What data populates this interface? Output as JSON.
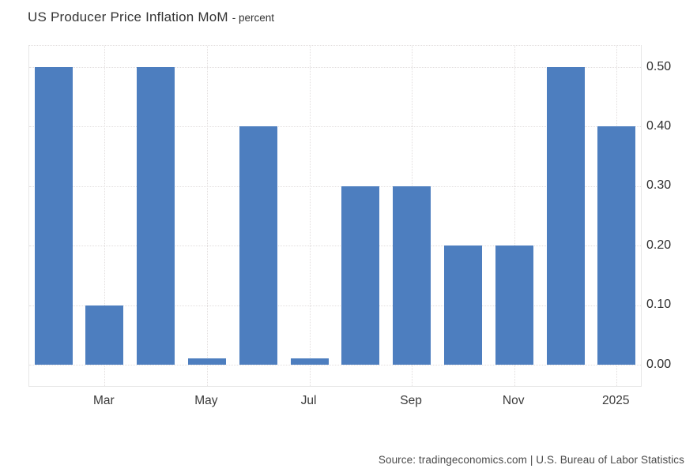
{
  "chart_data": {
    "type": "bar",
    "title": "US Producer Price Inflation MoM",
    "subtitle": "- percent",
    "values": [
      0.5,
      0.1,
      0.5,
      0.01,
      0.4,
      0.01,
      0.3,
      0.3,
      0.2,
      0.2,
      0.5,
      0.4
    ],
    "x_tick_labels": [
      "Mar",
      "May",
      "Jul",
      "Sep",
      "Nov",
      "2025"
    ],
    "x_tick_bar_indices": [
      1,
      3,
      5,
      7,
      9,
      11
    ],
    "y_tick_labels": [
      "0.50",
      "0.40",
      "0.30",
      "0.20",
      "0.10",
      "0.00"
    ],
    "y_tick_values": [
      0.5,
      0.4,
      0.3,
      0.2,
      0.1,
      0.0
    ],
    "ylim": [
      -0.04,
      0.536
    ],
    "grid": "dotted",
    "legend_position": "none",
    "bar_color": "#4d7ebf",
    "source": "Source: tradingeconomics.com | U.S. Bureau of Labor Statistics"
  }
}
